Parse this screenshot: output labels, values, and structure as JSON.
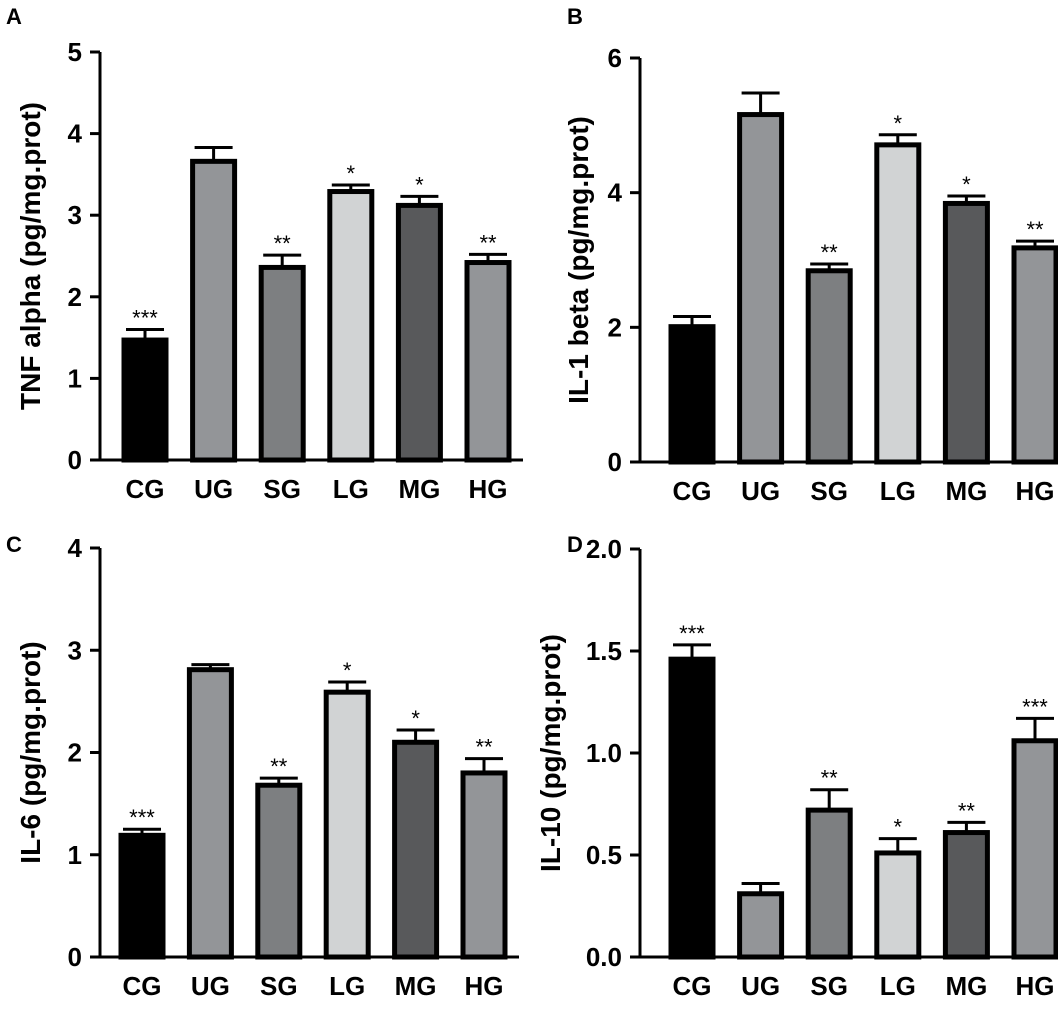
{
  "chart_data": [
    {
      "panel": "A",
      "type": "bar",
      "ylabel": "TNF alpha (pg/mg.prot)",
      "ylim": [
        0,
        5
      ],
      "yticks": [
        "0",
        "1",
        "2",
        "3",
        "4",
        "5"
      ],
      "categories": [
        "CG",
        "UG",
        "SG",
        "LG",
        "MG",
        "HG"
      ],
      "values": [
        1.47,
        3.66,
        2.36,
        3.29,
        3.12,
        2.42
      ],
      "errors": [
        0.13,
        0.17,
        0.15,
        0.08,
        0.11,
        0.1
      ],
      "significance": [
        "***",
        "",
        "**",
        "*",
        "*",
        "**"
      ]
    },
    {
      "panel": "B",
      "type": "bar",
      "ylabel": "IL-1 beta (pg/mg.prot)",
      "ylim": [
        0,
        6
      ],
      "yticks": [
        "0",
        "2",
        "4",
        "6"
      ],
      "categories": [
        "CG",
        "UG",
        "SG",
        "LG",
        "MG",
        "HG"
      ],
      "values": [
        2.01,
        5.16,
        2.84,
        4.71,
        3.84,
        3.18
      ],
      "errors": [
        0.15,
        0.32,
        0.1,
        0.15,
        0.11,
        0.1
      ],
      "significance": [
        "",
        "",
        "**",
        "*",
        "*",
        "**"
      ]
    },
    {
      "panel": "C",
      "type": "bar",
      "ylabel": "IL-6 (pg/mg.prot)",
      "ylim": [
        0,
        4
      ],
      "yticks": [
        "0",
        "1",
        "2",
        "3",
        "4"
      ],
      "categories": [
        "CG",
        "UG",
        "SG",
        "LG",
        "MG",
        "HG"
      ],
      "values": [
        1.19,
        2.81,
        1.68,
        2.59,
        2.1,
        1.8
      ],
      "errors": [
        0.06,
        0.05,
        0.07,
        0.1,
        0.12,
        0.14
      ],
      "significance": [
        "***",
        "",
        "**",
        "*",
        "*",
        "**"
      ]
    },
    {
      "panel": "D",
      "type": "bar",
      "ylabel": "IL-10 (pg/mg.prot)",
      "ylim": [
        0,
        2
      ],
      "yticks": [
        "0.0",
        "0.5",
        "1.0",
        "1.5",
        "2.0"
      ],
      "categories": [
        "CG",
        "UG",
        "SG",
        "LG",
        "MG",
        "HG"
      ],
      "values": [
        1.46,
        0.31,
        0.72,
        0.51,
        0.61,
        1.06
      ],
      "errors": [
        0.07,
        0.05,
        0.1,
        0.07,
        0.05,
        0.11
      ],
      "significance": [
        "***",
        "",
        "**",
        "*",
        "**",
        "***"
      ]
    }
  ],
  "colors": {
    "bar_fills": [
      "#000000",
      "#939598",
      "#7d7f81",
      "#d1d3d4",
      "#58595b",
      "#939598"
    ],
    "outline": "#000000"
  }
}
